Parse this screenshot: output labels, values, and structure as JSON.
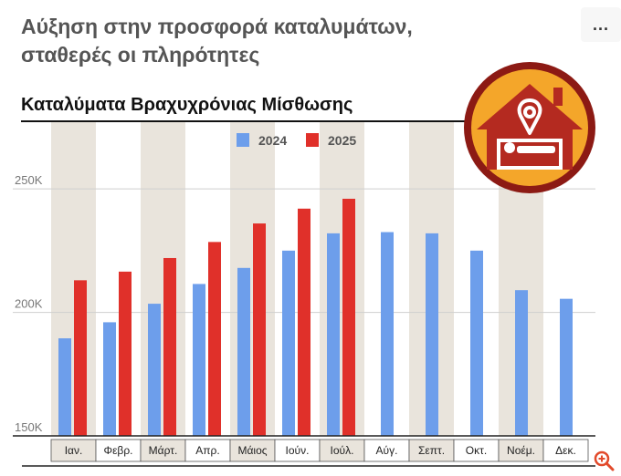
{
  "headline": {
    "line1": "Αύξηση στην προσφορά καταλυμάτων,",
    "line2": "σταθερές οι πληρότητες"
  },
  "menu": {
    "icon": "more-horizontal-icon",
    "label": "..."
  },
  "zoom": {
    "icon": "zoom-in-icon"
  },
  "logo": {
    "icon": "airbnb-house-bed-icon"
  },
  "chart_data": {
    "type": "bar",
    "title": "Καταλύματα Βραχυχρόνιας Μίσθωσης",
    "categories": [
      "Ιαν.",
      "Φεβρ.",
      "Μάρτ.",
      "Απρ.",
      "Μάιος",
      "Ιούν.",
      "Ιούλ.",
      "Αύγ.",
      "Σεπτ.",
      "Οκτ.",
      "Νοέμ.",
      "Δεκ."
    ],
    "series": [
      {
        "name": "2024",
        "color": "#6d9eeb",
        "values": [
          189500,
          196000,
          203500,
          211500,
          218000,
          225000,
          232000,
          232500,
          232000,
          225000,
          209000,
          205500
        ]
      },
      {
        "name": "2025",
        "color": "#e0302a",
        "values": [
          213000,
          216500,
          222000,
          228500,
          236000,
          242000,
          246000,
          null,
          null,
          null,
          null,
          null
        ]
      }
    ],
    "yticks": [
      {
        "value": 150000,
        "label": "150K"
      },
      {
        "value": 200000,
        "label": "200K"
      },
      {
        "value": 250000,
        "label": "250K"
      }
    ],
    "ylim": [
      150000,
      277000
    ],
    "xlabel": "",
    "ylabel": "",
    "legend": "top-center",
    "grid": true,
    "stripe_color": "#e9e4dc"
  }
}
